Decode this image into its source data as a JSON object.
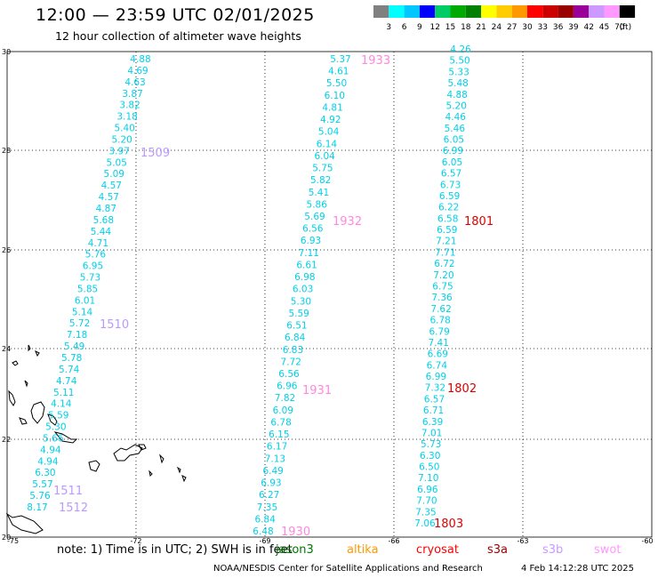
{
  "header": {
    "title": "12:00 — 23:59 UTC 02/01/2025",
    "subtitle": "12 hour collection of altimeter wave heights"
  },
  "legend": {
    "unit": "(ft)",
    "items": [
      {
        "label": "3",
        "color": "#808080"
      },
      {
        "label": "6",
        "color": "#00ffff"
      },
      {
        "label": "9",
        "color": "#00c8ff"
      },
      {
        "label": "12",
        "color": "#0000ff"
      },
      {
        "label": "15",
        "color": "#00cc66"
      },
      {
        "label": "18",
        "color": "#00aa00"
      },
      {
        "label": "21",
        "color": "#008000"
      },
      {
        "label": "24",
        "color": "#ffff00"
      },
      {
        "label": "27",
        "color": "#ffcc00"
      },
      {
        "label": "30",
        "color": "#ff9900"
      },
      {
        "label": "33",
        "color": "#ff0000"
      },
      {
        "label": "36",
        "color": "#cc0000"
      },
      {
        "label": "39",
        "color": "#990000"
      },
      {
        "label": "42",
        "color": "#990099"
      },
      {
        "label": "45",
        "color": "#cc99ff"
      },
      {
        "label": "70",
        "color": "#ff99ff"
      },
      {
        "label": "",
        "color": "#000000"
      }
    ]
  },
  "axes": {
    "lon_labels": [
      "-75",
      "-72",
      "-69",
      "-66",
      "-63",
      "-60"
    ],
    "lat_labels": [
      "30",
      "28",
      "26",
      "24",
      "22",
      "20"
    ]
  },
  "tracks": [
    {
      "name": "track-1509-1512",
      "color": "#00d0e8",
      "values": [
        "4.88",
        "4.69",
        "4.63",
        "3.87",
        "3.82",
        "3.18",
        "5.40",
        "5.20",
        "3.97",
        "5.05",
        "5.09",
        "4.57",
        "4.57",
        "4.87",
        "5.68",
        "5.44",
        "4.71",
        "5.76",
        "6.95",
        "5.73",
        "5.85",
        "6.01",
        "5.14",
        "5.72",
        "7.18",
        "5.49",
        "5.78",
        "5.74",
        "4.74",
        "5.11",
        "4.14",
        "5.59",
        "5.30",
        "5.66",
        "4.94",
        "4.94",
        "6.30",
        "5.57",
        "5.76",
        "8.17"
      ]
    },
    {
      "name": "track-1930-1933",
      "color": "#00d0e8",
      "values": [
        "5.37",
        "4.61",
        "5.50",
        "6.10",
        "4.81",
        "4.92",
        "5.04",
        "6.14",
        "6.04",
        "5.75",
        "5.82",
        "5.41",
        "5.86",
        "5.69",
        "6.56",
        "6.93",
        "7.11",
        "6.61",
        "6.98",
        "6.03",
        "5.30",
        "5.59",
        "6.51",
        "6.84",
        "6.83",
        "7.72",
        "6.56",
        "6.96",
        "7.82",
        "6.09",
        "6.78",
        "6.15",
        "6.17",
        "7.13",
        "6.49",
        "6.93",
        "6.27",
        "7.35",
        "6.84",
        "6.48"
      ]
    },
    {
      "name": "track-1801-1803",
      "color": "#00d0e8",
      "values": [
        "4.26",
        "5.50",
        "5.33",
        "5.48",
        "4.88",
        "5.20",
        "4.46",
        "5.46",
        "6.05",
        "6.99",
        "6.05",
        "6.57",
        "6.73",
        "6.59",
        "6.22",
        "6.58",
        "6.59",
        "7.21",
        "7.71",
        "6.72",
        "7.20",
        "6.75",
        "7.36",
        "7.62",
        "6.78",
        "6.79",
        "7.41",
        "6.69",
        "6.74",
        "6.99",
        "7.32",
        "6.57",
        "6.71",
        "6.39",
        "7.01",
        "5.73",
        "6.30",
        "6.50",
        "7.10",
        "6.96",
        "7.70",
        "7.35",
        "7.06"
      ]
    }
  ],
  "time_labels": [
    {
      "label": "1933",
      "color": "#ff88dd"
    },
    {
      "label": "1932",
      "color": "#ff88dd"
    },
    {
      "label": "1931",
      "color": "#ff88dd"
    },
    {
      "label": "1930",
      "color": "#ff88dd"
    },
    {
      "label": "1509",
      "color": "#bb99ff"
    },
    {
      "label": "1510",
      "color": "#bb99ff"
    },
    {
      "label": "1511",
      "color": "#bb99ff"
    },
    {
      "label": "1512",
      "color": "#bb99ff"
    },
    {
      "label": "1801",
      "color": "#dd0000"
    },
    {
      "label": "1802",
      "color": "#dd0000"
    },
    {
      "label": "1803",
      "color": "#dd0000"
    }
  ],
  "note": {
    "text": "note:  1) Time is in UTC; 2) SWH is in feet",
    "satellites": [
      {
        "label": "jason3",
        "color": "#007700"
      },
      {
        "label": "altika",
        "color": "#ff9900"
      },
      {
        "label": "cryosat",
        "color": "#ff0000"
      },
      {
        "label": "s3a",
        "color": "#990000"
      },
      {
        "label": "s3b",
        "color": "#cc99ff"
      },
      {
        "label": "swot",
        "color": "#ff99ff"
      }
    ]
  },
  "footer": {
    "credit": "NOAA/NESDIS Center for Satellite Applications and Research",
    "timestamp": "4 Feb 14:12:28 UTC 2025"
  }
}
